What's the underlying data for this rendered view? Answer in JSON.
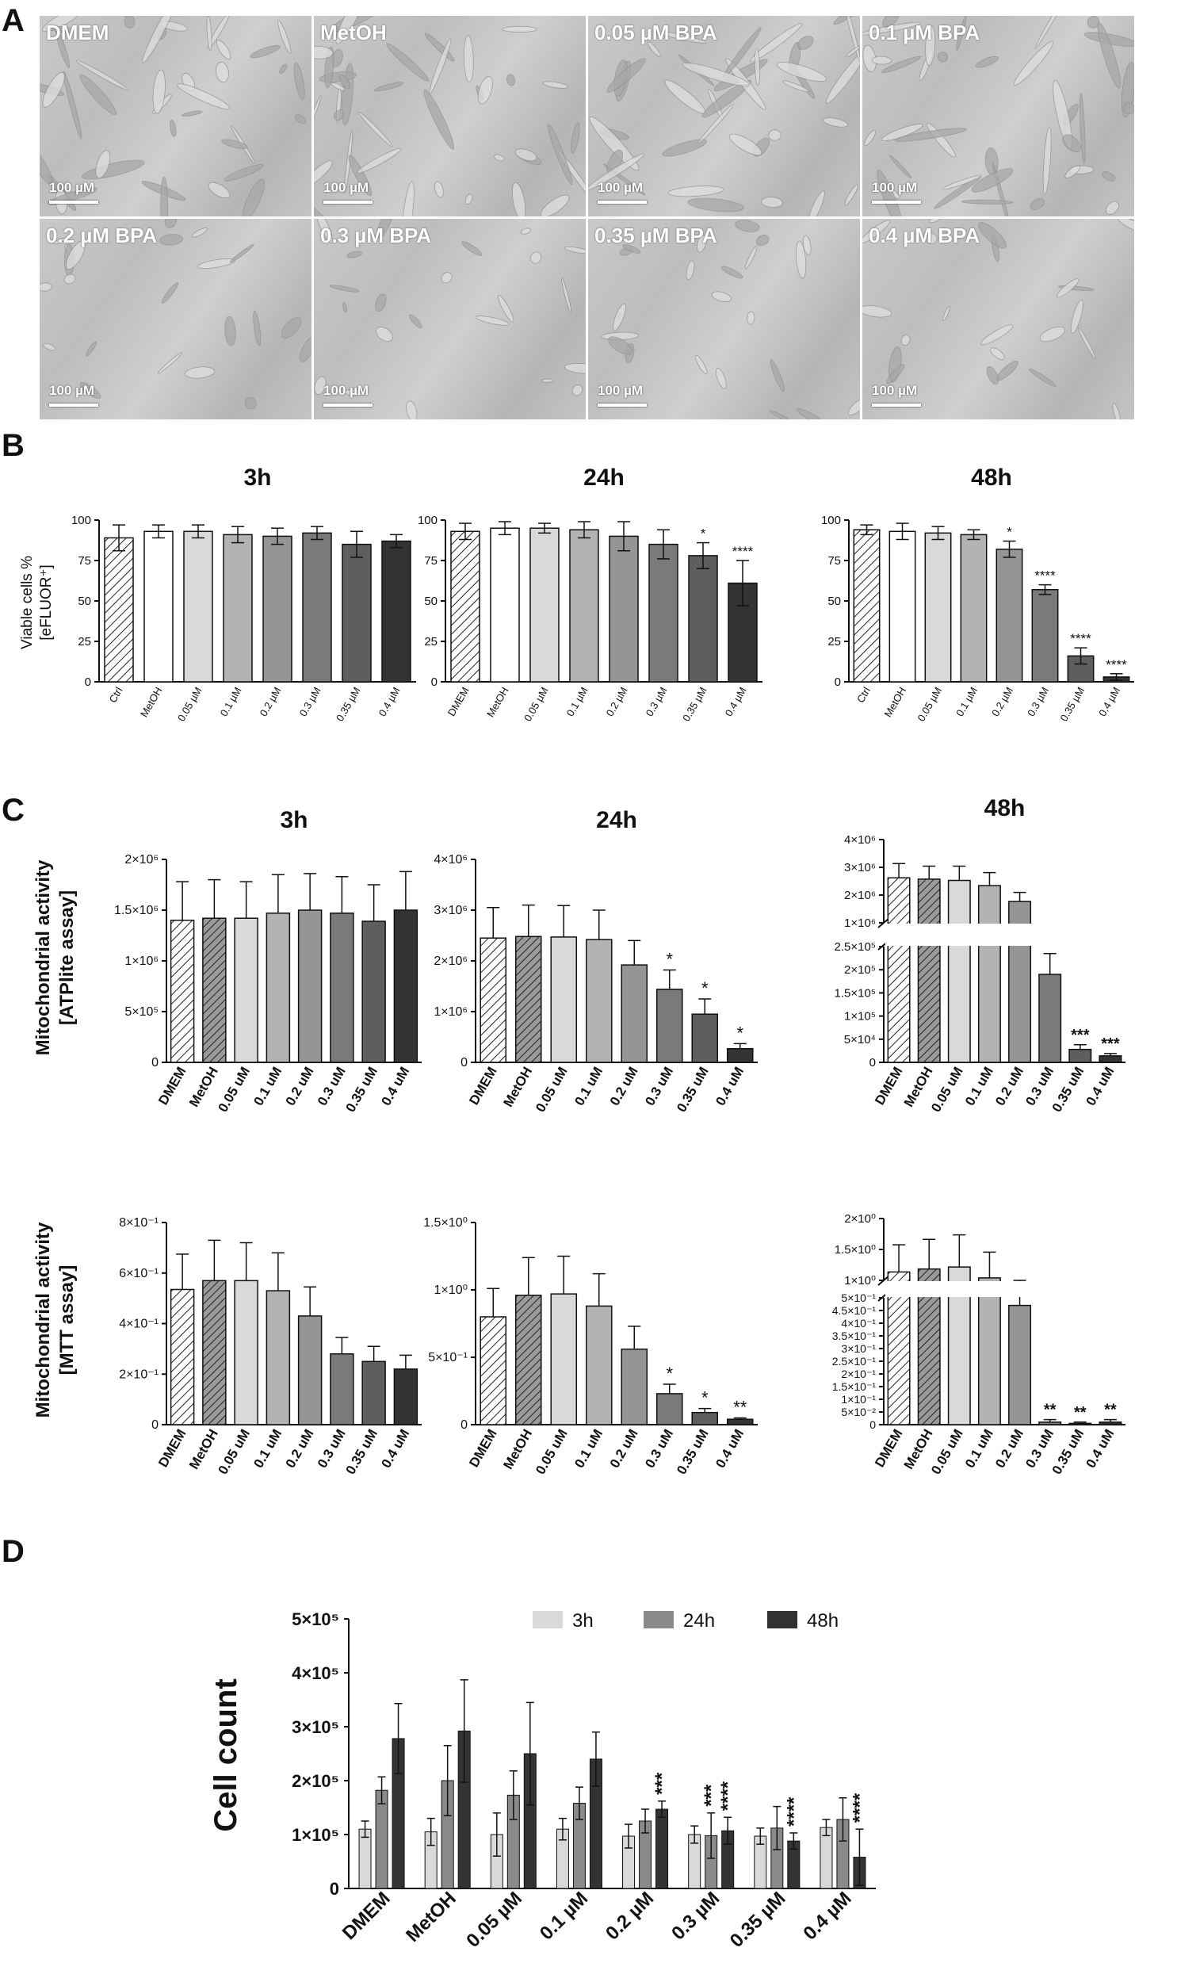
{
  "panel_letters": {
    "a": "A",
    "b": "B",
    "c": "C",
    "d": "D"
  },
  "micrographs": {
    "scale_label": "100 µM",
    "tiles": [
      "DMEM",
      "MetOH",
      "0.05 µM BPA",
      "0.1 µM BPA",
      "0.2 µM BPA",
      "0.3 µM BPA",
      "0.35 µM BPA",
      "0.4 µM BPA"
    ]
  },
  "chart_data": [
    {
      "id": "B-3h",
      "type": "bar",
      "title": "3h",
      "ylabel": "Viable cells % [eFLUOR+]",
      "categories": [
        "Ctrl",
        "MetOH",
        "0.05 µM",
        "0.1 µM",
        "0.2 µM",
        "0.3 µM",
        "0.35 µM",
        "0.4 µM"
      ],
      "values": [
        89,
        93,
        93,
        91,
        90,
        92,
        85,
        87
      ],
      "errors": [
        8,
        4,
        4,
        5,
        5,
        4,
        8,
        4
      ],
      "significance": [
        "",
        "",
        "",
        "",
        "",
        "",
        "",
        ""
      ],
      "yticks": [
        "0",
        "25",
        "50",
        "75",
        "100"
      ],
      "ylim": [
        0,
        100
      ]
    },
    {
      "id": "B-24h",
      "type": "bar",
      "title": "24h",
      "ylabel": "",
      "categories": [
        "DMEM",
        "MetOH",
        "0.05 µM",
        "0.1 µM",
        "0.2 µM",
        "0.3 µM",
        "0.35 µM",
        "0.4 µM"
      ],
      "values": [
        93,
        95,
        95,
        94,
        90,
        85,
        78,
        61
      ],
      "errors": [
        5,
        4,
        3,
        5,
        9,
        9,
        8,
        14
      ],
      "significance": [
        "",
        "",
        "",
        "",
        "",
        "",
        "*",
        "****"
      ],
      "yticks": [
        "0",
        "25",
        "50",
        "75",
        "100"
      ],
      "ylim": [
        0,
        100
      ]
    },
    {
      "id": "B-48h",
      "type": "bar",
      "title": "48h",
      "ylabel": "",
      "categories": [
        "Ctrl",
        "MetOH",
        "0.05 µM",
        "0.1 µM",
        "0.2 µM",
        "0.3 µM",
        "0.35 µM",
        "0.4 µM"
      ],
      "values": [
        94,
        93,
        92,
        91,
        82,
        57,
        16,
        3
      ],
      "errors": [
        3,
        5,
        4,
        3,
        5,
        3,
        5,
        2
      ],
      "significance": [
        "",
        "",
        "",
        "",
        "*",
        "****",
        "****",
        "****"
      ],
      "yticks": [
        "0",
        "25",
        "50",
        "75",
        "100"
      ],
      "ylim": [
        0,
        100
      ]
    },
    {
      "id": "C-ATP-3h",
      "type": "bar",
      "title": "3h",
      "ylabel": "Mitochondrial activity [ATPlite assay]",
      "categories": [
        "DMEM",
        "MetOH",
        "0.05 uM",
        "0.1 uM",
        "0.2 uM",
        "0.3 uM",
        "0.35 uM",
        "0.4 uM"
      ],
      "values": [
        1400000,
        1420000,
        1420000,
        1470000,
        1500000,
        1470000,
        1390000,
        1500000
      ],
      "errors": [
        380000,
        380000,
        360000,
        380000,
        360000,
        360000,
        360000,
        380000
      ],
      "significance": [
        "",
        "",
        "",
        "",
        "",
        "",
        "",
        ""
      ],
      "yticks": [
        "0",
        "5×10⁵",
        "1×10⁶",
        "1.5×10⁶",
        "2×10⁶"
      ],
      "ylim": [
        0,
        2000000
      ]
    },
    {
      "id": "C-ATP-24h",
      "type": "bar",
      "title": "24h",
      "ylabel": "",
      "categories": [
        "DMEM",
        "MetOH",
        "0.05 uM",
        "0.1 uM",
        "0.2 uM",
        "0.3 uM",
        "0.35 uM",
        "0.4 uM"
      ],
      "values": [
        2450000,
        2480000,
        2470000,
        2420000,
        1920000,
        1440000,
        950000,
        270000
      ],
      "errors": [
        600000,
        620000,
        620000,
        580000,
        480000,
        380000,
        300000,
        100000
      ],
      "significance": [
        "",
        "",
        "",
        "",
        "",
        "*",
        "*",
        "*"
      ],
      "yticks": [
        "0",
        "1×10⁶",
        "2×10⁶",
        "3×10⁶",
        "4×10⁶"
      ],
      "ylim": [
        0,
        4000000
      ]
    },
    {
      "id": "C-ATP-48h",
      "type": "bar",
      "title": "48h",
      "ylabel": "",
      "axis_break": true,
      "categories": [
        "DMEM",
        "MetOH",
        "0.05 uM",
        "0.1 uM",
        "0.2 uM",
        "0.3 uM",
        "0.35 uM",
        "0.4 uM"
      ],
      "values": [
        2530000,
        2480000,
        2430000,
        2230000,
        1620000,
        190000,
        28000,
        14000
      ],
      "errors": [
        550000,
        500000,
        550000,
        500000,
        350000,
        45000,
        10000,
        5000
      ],
      "significance": [
        "",
        "",
        "",
        "",
        "",
        "**",
        "***",
        "***"
      ],
      "yticks_lower": [
        "0",
        "5×10⁴",
        "1×10⁵",
        "1.5×10⁵",
        "2×10⁵",
        "2.5×10⁵"
      ],
      "yticks_upper": [
        "1×10⁶",
        "2×10⁶",
        "3×10⁶",
        "4×10⁶"
      ]
    },
    {
      "id": "C-MTT-3h",
      "type": "bar",
      "title": "",
      "ylabel": "Mitochondrial activity [MTT assay]",
      "categories": [
        "DMEM",
        "MetOH",
        "0.05 uM",
        "0.1 uM",
        "0.2 uM",
        "0.3 uM",
        "0.35 uM",
        "0.4 uM"
      ],
      "values": [
        0.535,
        0.57,
        0.57,
        0.53,
        0.43,
        0.28,
        0.25,
        0.22
      ],
      "errors": [
        0.14,
        0.16,
        0.15,
        0.15,
        0.115,
        0.065,
        0.06,
        0.055
      ],
      "significance": [
        "",
        "",
        "",
        "",
        "",
        "",
        "",
        ""
      ],
      "yticks": [
        "0",
        "2×10⁻¹",
        "4×10⁻¹",
        "6×10⁻¹",
        "8×10⁻¹"
      ],
      "ylim": [
        0,
        0.8
      ]
    },
    {
      "id": "C-MTT-24h",
      "type": "bar",
      "title": "",
      "ylabel": "",
      "categories": [
        "DMEM",
        "MetOH",
        "0.05 uM",
        "0.1 uM",
        "0.2 uM",
        "0.3 uM",
        "0.35 uM",
        "0.4 uM"
      ],
      "values": [
        0.8,
        0.96,
        0.97,
        0.88,
        0.56,
        0.23,
        0.09,
        0.04
      ],
      "errors": [
        0.21,
        0.28,
        0.28,
        0.24,
        0.17,
        0.07,
        0.03,
        0.01
      ],
      "significance": [
        "",
        "",
        "",
        "",
        "",
        "*",
        "*",
        "**"
      ],
      "yticks": [
        "0",
        "5×10⁻¹",
        "1×10⁰",
        "1.5×10⁰"
      ],
      "ylim": [
        0,
        1.5
      ]
    },
    {
      "id": "C-MTT-48h",
      "type": "bar",
      "title": "",
      "ylabel": "",
      "axis_break": true,
      "categories": [
        "DMEM",
        "MetOH",
        "0.05 uM",
        "0.1 uM",
        "0.2 uM",
        "0.3 uM",
        "0.35 uM",
        "0.4 uM"
      ],
      "values": [
        0.92,
        0.98,
        1.02,
        0.8,
        0.47,
        0.01,
        0.005,
        0.01
      ],
      "errors": [
        0.55,
        0.6,
        0.65,
        0.52,
        0.28,
        0.01,
        0.005,
        0.01
      ],
      "significance": [
        "",
        "",
        "",
        "",
        "",
        "**",
        "**",
        "**"
      ],
      "yticks_lower": [
        "0",
        "5×10⁻²",
        "1×10⁻¹",
        "1.5×10⁻¹",
        "2×10⁻¹",
        "2.5×10⁻¹",
        "3×10⁻¹",
        "3.5×10⁻¹",
        "4×10⁻¹",
        "4.5×10⁻¹",
        "5×10⁻¹"
      ],
      "yticks_upper": [
        "1×10⁰",
        "1.5×10⁰",
        "2×10⁰"
      ]
    },
    {
      "id": "D",
      "type": "bar",
      "title": "",
      "ylabel": "Cell count",
      "categories": [
        "DMEM",
        "MetOH",
        "0.05 µM",
        "0.1 µM",
        "0.2 µM",
        "0.3 µM",
        "0.35 µM",
        "0.4 µM"
      ],
      "series": [
        {
          "name": "3h",
          "values": [
            110000,
            105000,
            100000,
            110000,
            97000,
            100000,
            97000,
            113000
          ],
          "errors": [
            15000,
            25000,
            40000,
            20000,
            22000,
            16000,
            15000,
            15000
          ]
        },
        {
          "name": "24h",
          "values": [
            182000,
            200000,
            173000,
            158000,
            125000,
            98000,
            112000,
            128000
          ],
          "errors": [
            25000,
            65000,
            45000,
            30000,
            22000,
            42000,
            40000,
            40000
          ]
        },
        {
          "name": "48h",
          "values": [
            278000,
            292000,
            250000,
            240000,
            147000,
            107000,
            88000,
            58000
          ],
          "errors": [
            65000,
            95000,
            95000,
            50000,
            15000,
            25000,
            15000,
            52000
          ],
          "significance": [
            "",
            "",
            "",
            "",
            "***",
            "****",
            "****",
            "****"
          ]
        }
      ],
      "significance_24h": [
        "",
        "",
        "",
        "",
        "",
        "***",
        "",
        ""
      ],
      "yticks": [
        "0",
        "1×10⁵",
        "2×10⁵",
        "3×10⁵",
        "4×10⁵",
        "5×10⁵"
      ],
      "ylim": [
        0,
        500000
      ],
      "legend": "top"
    }
  ],
  "colors": {
    "bar_grays": [
      "#ffffff",
      "#ffffff",
      "#d9d9d9",
      "#b3b3b3",
      "#959595",
      "#7a7a7a",
      "#5e5e5e",
      "#333333"
    ],
    "d_series": [
      "#d9d9d9",
      "#8a8a8a",
      "#333333"
    ]
  }
}
